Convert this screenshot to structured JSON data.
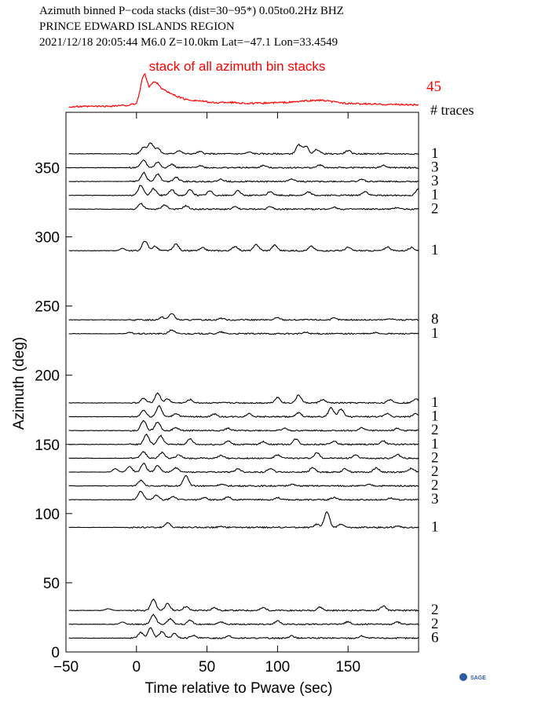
{
  "header": {
    "line1": "Azimuth binned P−coda stacks (dist=30−95*)  0.05to0.2Hz  BHZ",
    "line2": "PRINCE EDWARD ISLANDS REGION",
    "line3": "2021/12/18  20:05:44  M6.0  Z=10.0km Lat=−47.1 Lon=33.4549"
  },
  "colors": {
    "stack": "#ff0000",
    "trace": "#000000",
    "axis": "#000000"
  },
  "logo_text": "SAGE",
  "chart_data": {
    "type": "line",
    "stack_title": "stack of all azimuth bin stacks",
    "stack_count": "45",
    "traces_header": "# traces",
    "xlabel": "Time relative to Pwave (sec)",
    "ylabel": "Azimuth (deg)",
    "xlim": [
      -50,
      200
    ],
    "ylim": [
      0,
      390
    ],
    "x_ticks": [
      -50,
      0,
      50,
      100,
      150
    ],
    "x_tick_labels": [
      "−50",
      "0",
      "50",
      "100",
      "150"
    ],
    "y_ticks": [
      0,
      50,
      100,
      150,
      200,
      250,
      300,
      350
    ],
    "y_tick_labels": [
      "0",
      "50",
      "100",
      "150",
      "200",
      "250",
      "300",
      "350"
    ],
    "stack_trace": [
      [
        -48,
        0
      ],
      [
        -20,
        0.02
      ],
      [
        -5,
        0.05
      ],
      [
        0,
        0.1
      ],
      [
        2,
        0.4
      ],
      [
        4,
        0.85
      ],
      [
        6,
        1.0
      ],
      [
        9,
        0.6
      ],
      [
        12,
        0.75
      ],
      [
        15,
        0.72
      ],
      [
        18,
        0.55
      ],
      [
        22,
        0.45
      ],
      [
        27,
        0.35
      ],
      [
        35,
        0.22
      ],
      [
        45,
        0.18
      ],
      [
        55,
        0.12
      ],
      [
        65,
        0.14
      ],
      [
        80,
        0.1
      ],
      [
        95,
        0.12
      ],
      [
        110,
        0.14
      ],
      [
        120,
        0.18
      ],
      [
        130,
        0.2
      ],
      [
        140,
        0.15
      ],
      [
        150,
        0.1
      ],
      [
        170,
        0.08
      ],
      [
        200,
        0.06
      ]
    ],
    "traces": [
      {
        "azimuth": 360,
        "count": "1",
        "peaks": [
          [
            10,
            1.0
          ],
          [
            5,
            0.6
          ],
          [
            15,
            0.5
          ],
          [
            30,
            0.3
          ],
          [
            45,
            0.2
          ],
          [
            80,
            0.15
          ],
          [
            115,
            0.8
          ],
          [
            120,
            0.7
          ],
          [
            128,
            0.4
          ],
          [
            150,
            0.3
          ]
        ]
      },
      {
        "azimuth": 350,
        "count": "3",
        "peaks": [
          [
            5,
            0.7
          ],
          [
            15,
            0.5
          ],
          [
            25,
            0.3
          ],
          [
            45,
            0.2
          ],
          [
            90,
            0.2
          ],
          [
            130,
            0.25
          ],
          [
            175,
            0.2
          ]
        ]
      },
      {
        "azimuth": 340,
        "count": "3",
        "peaks": [
          [
            5,
            0.8
          ],
          [
            15,
            0.7
          ],
          [
            28,
            0.4
          ],
          [
            60,
            0.2
          ],
          [
            110,
            0.25
          ],
          [
            160,
            0.2
          ]
        ]
      },
      {
        "azimuth": 330,
        "count": "1",
        "peaks": [
          [
            3,
            0.9
          ],
          [
            12,
            0.6
          ],
          [
            25,
            0.5
          ],
          [
            38,
            0.5
          ],
          [
            52,
            0.4
          ],
          [
            72,
            0.4
          ],
          [
            95,
            0.35
          ],
          [
            122,
            0.3
          ],
          [
            162,
            0.35
          ],
          [
            200,
            0.6
          ]
        ]
      },
      {
        "azimuth": 320,
        "count": "2",
        "peaks": [
          [
            3,
            0.5
          ],
          [
            20,
            0.4
          ],
          [
            35,
            0.3
          ],
          [
            70,
            0.2
          ],
          [
            95,
            0.25
          ],
          [
            140,
            0.2
          ],
          [
            185,
            0.15
          ]
        ]
      },
      {
        "azimuth": 290,
        "count": "1",
        "peaks": [
          [
            -10,
            0.2
          ],
          [
            6,
            0.9
          ],
          [
            13,
            0.4
          ],
          [
            28,
            0.6
          ],
          [
            47,
            0.25
          ],
          [
            70,
            0.4
          ],
          [
            85,
            0.55
          ],
          [
            98,
            0.5
          ],
          [
            124,
            0.4
          ],
          [
            150,
            0.3
          ],
          [
            178,
            0.35
          ],
          [
            195,
            0.3
          ]
        ]
      },
      {
        "azimuth": 240,
        "count": "8",
        "peaks": [
          [
            18,
            0.25
          ],
          [
            25,
            0.6
          ],
          [
            60,
            0.15
          ],
          [
            100,
            0.2
          ],
          [
            140,
            0.15
          ],
          [
            180,
            0.12
          ]
        ]
      },
      {
        "azimuth": 230,
        "count": "1",
        "peaks": [
          [
            -5,
            0.1
          ],
          [
            25,
            0.35
          ],
          [
            60,
            0.15
          ],
          [
            120,
            0.12
          ],
          [
            170,
            0.1
          ]
        ]
      },
      {
        "azimuth": 180,
        "count": "1",
        "peaks": [
          [
            5,
            0.4
          ],
          [
            15,
            0.9
          ],
          [
            22,
            0.35
          ],
          [
            38,
            0.3
          ],
          [
            100,
            0.5
          ],
          [
            115,
            0.7
          ],
          [
            132,
            0.3
          ],
          [
            180,
            0.3
          ],
          [
            198,
            0.4
          ]
        ]
      },
      {
        "azimuth": 170,
        "count": "1",
        "peaks": [
          [
            5,
            0.6
          ],
          [
            16,
            1.0
          ],
          [
            28,
            0.3
          ],
          [
            55,
            0.25
          ],
          [
            80,
            0.3
          ],
          [
            115,
            0.35
          ],
          [
            138,
            0.8
          ],
          [
            145,
            0.7
          ],
          [
            178,
            0.3
          ],
          [
            198,
            0.3
          ]
        ]
      },
      {
        "azimuth": 160,
        "count": "2",
        "peaks": [
          [
            5,
            0.9
          ],
          [
            15,
            0.8
          ],
          [
            28,
            0.25
          ],
          [
            65,
            0.2
          ],
          [
            105,
            0.2
          ],
          [
            160,
            0.25
          ],
          [
            185,
            0.2
          ]
        ]
      },
      {
        "azimuth": 150,
        "count": "1",
        "peaks": [
          [
            7,
            0.9
          ],
          [
            17,
            0.8
          ],
          [
            38,
            0.5
          ],
          [
            65,
            0.3
          ],
          [
            90,
            0.25
          ],
          [
            113,
            0.5
          ],
          [
            140,
            0.3
          ],
          [
            175,
            0.3
          ]
        ]
      },
      {
        "azimuth": 140,
        "count": "2",
        "peaks": [
          [
            5,
            0.6
          ],
          [
            18,
            0.5
          ],
          [
            30,
            0.3
          ],
          [
            60,
            0.25
          ],
          [
            100,
            0.3
          ],
          [
            128,
            0.5
          ],
          [
            155,
            0.3
          ],
          [
            185,
            0.35
          ]
        ]
      },
      {
        "azimuth": 130,
        "count": "2",
        "peaks": [
          [
            -15,
            0.3
          ],
          [
            -5,
            0.5
          ],
          [
            5,
            0.8
          ],
          [
            15,
            0.6
          ],
          [
            28,
            0.4
          ],
          [
            72,
            0.3
          ],
          [
            95,
            0.35
          ],
          [
            125,
            0.4
          ],
          [
            148,
            0.3
          ],
          [
            170,
            0.4
          ],
          [
            195,
            0.35
          ]
        ]
      },
      {
        "azimuth": 120,
        "count": "2",
        "peaks": [
          [
            3,
            0.5
          ],
          [
            35,
            0.9
          ],
          [
            60,
            0.15
          ],
          [
            110,
            0.15
          ],
          [
            165,
            0.12
          ]
        ]
      },
      {
        "azimuth": 110,
        "count": "3",
        "peaks": [
          [
            3,
            0.8
          ],
          [
            14,
            0.4
          ],
          [
            26,
            0.3
          ],
          [
            48,
            0.2
          ],
          [
            65,
            0.25
          ],
          [
            100,
            0.2
          ],
          [
            140,
            0.2
          ],
          [
            180,
            0.15
          ]
        ]
      },
      {
        "azimuth": 90,
        "count": "1",
        "peaks": [
          [
            22,
            0.4
          ],
          [
            60,
            0.1
          ],
          [
            128,
            0.3
          ],
          [
            135,
            1.4
          ],
          [
            145,
            0.3
          ],
          [
            185,
            0.1
          ]
        ]
      },
      {
        "azimuth": 30,
        "count": "2",
        "peaks": [
          [
            -20,
            0.15
          ],
          [
            12,
            1.0
          ],
          [
            22,
            0.6
          ],
          [
            35,
            0.35
          ],
          [
            55,
            0.25
          ],
          [
            90,
            0.25
          ],
          [
            130,
            0.3
          ],
          [
            175,
            0.4
          ]
        ]
      },
      {
        "azimuth": 20,
        "count": "2",
        "peaks": [
          [
            -10,
            0.2
          ],
          [
            12,
            0.9
          ],
          [
            24,
            0.5
          ],
          [
            38,
            0.35
          ],
          [
            60,
            0.2
          ],
          [
            100,
            0.3
          ],
          [
            150,
            0.25
          ],
          [
            185,
            0.2
          ]
        ]
      },
      {
        "azimuth": 10,
        "count": "6",
        "peaks": [
          [
            3,
            0.5
          ],
          [
            10,
            0.9
          ],
          [
            18,
            0.6
          ],
          [
            27,
            0.4
          ],
          [
            40,
            0.25
          ],
          [
            65,
            0.2
          ],
          [
            110,
            0.2
          ],
          [
            160,
            0.2
          ]
        ]
      }
    ]
  }
}
